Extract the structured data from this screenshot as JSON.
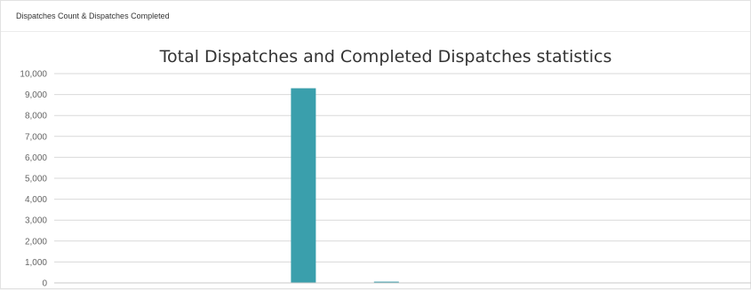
{
  "panel": {
    "title": "Dispatches Count & Dispatches Completed"
  },
  "colors": {
    "bar": "#3a9fac",
    "grid": "#d9d9d9"
  },
  "chart_data": {
    "type": "bar",
    "title": "Total Dispatches and Completed Dispatches statistics",
    "xlabel": "",
    "ylabel": "",
    "ylim": [
      0,
      10000
    ],
    "yticks": [
      0,
      1000,
      2000,
      3000,
      4000,
      5000,
      6000,
      7000,
      8000,
      9000,
      10000
    ],
    "ytick_labels": [
      "0",
      "1,000",
      "2,000",
      "3,000",
      "4,000",
      "5,000",
      "6,000",
      "7,000",
      "8,000",
      "9,000",
      "10,000"
    ],
    "grid": true,
    "legend": "none",
    "categories": [
      "",
      "",
      "",
      "",
      "",
      "",
      "",
      "",
      "",
      "",
      "",
      ""
    ],
    "series": [
      {
        "values": [
          0,
          0,
          0,
          0,
          9300,
          0,
          0,
          0,
          0,
          0,
          0,
          0
        ]
      },
      {
        "values": [
          0,
          0,
          0,
          0,
          0,
          60,
          0,
          0,
          0,
          0,
          0,
          0
        ]
      }
    ]
  }
}
